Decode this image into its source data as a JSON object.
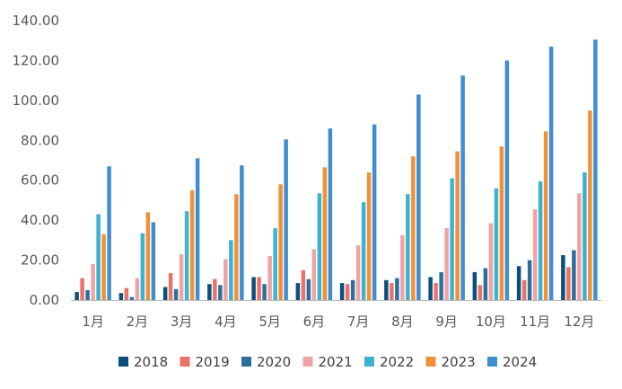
{
  "chart_data": {
    "type": "bar",
    "title": "",
    "xlabel": "",
    "ylabel": "",
    "ylim": [
      0,
      140
    ],
    "yticks": [
      "0.00",
      "20.00",
      "40.00",
      "60.00",
      "80.00",
      "100.00",
      "120.00",
      "140.00"
    ],
    "categories": [
      "1月",
      "2月",
      "3月",
      "4月",
      "5月",
      "6月",
      "7月",
      "8月",
      "9月",
      "10月",
      "11月",
      "12月"
    ],
    "legend_position": "bottom",
    "series": [
      {
        "name": "2018",
        "color": "#0B4F7C",
        "values": [
          4.0,
          3.5,
          6.5,
          8.0,
          11.5,
          8.5,
          8.5,
          10.0,
          11.5,
          14.0,
          17.0,
          22.5
        ]
      },
      {
        "name": "2019",
        "color": "#E8736A",
        "values": [
          11.0,
          6.0,
          13.5,
          10.5,
          11.5,
          15.0,
          8.0,
          8.5,
          8.5,
          7.5,
          10.0,
          16.5
        ]
      },
      {
        "name": "2020",
        "color": "#2E6E9E",
        "values": [
          5.0,
          1.5,
          5.5,
          7.5,
          8.0,
          10.5,
          10.0,
          11.0,
          14.0,
          16.0,
          20.0,
          25.0
        ]
      },
      {
        "name": "2021",
        "color": "#F0A3A3",
        "values": [
          18.0,
          11.0,
          23.0,
          20.5,
          22.0,
          25.5,
          27.5,
          32.5,
          36.0,
          38.5,
          45.5,
          53.5
        ]
      },
      {
        "name": "2022",
        "color": "#3DB1D0",
        "values": [
          43.0,
          33.5,
          44.5,
          30.0,
          36.0,
          53.5,
          49.0,
          53.0,
          61.0,
          56.0,
          59.5,
          64.0
        ]
      },
      {
        "name": "2023",
        "color": "#F0913A",
        "values": [
          33.0,
          44.0,
          55.0,
          53.0,
          58.0,
          66.5,
          64.0,
          72.0,
          74.5,
          77.0,
          84.5,
          95.0
        ]
      },
      {
        "name": "2024",
        "color": "#3F8FD0",
        "values": [
          67.0,
          39.0,
          71.0,
          67.5,
          80.5,
          86.0,
          88.0,
          103.0,
          112.5,
          120.0,
          127.0,
          130.5
        ]
      }
    ]
  }
}
